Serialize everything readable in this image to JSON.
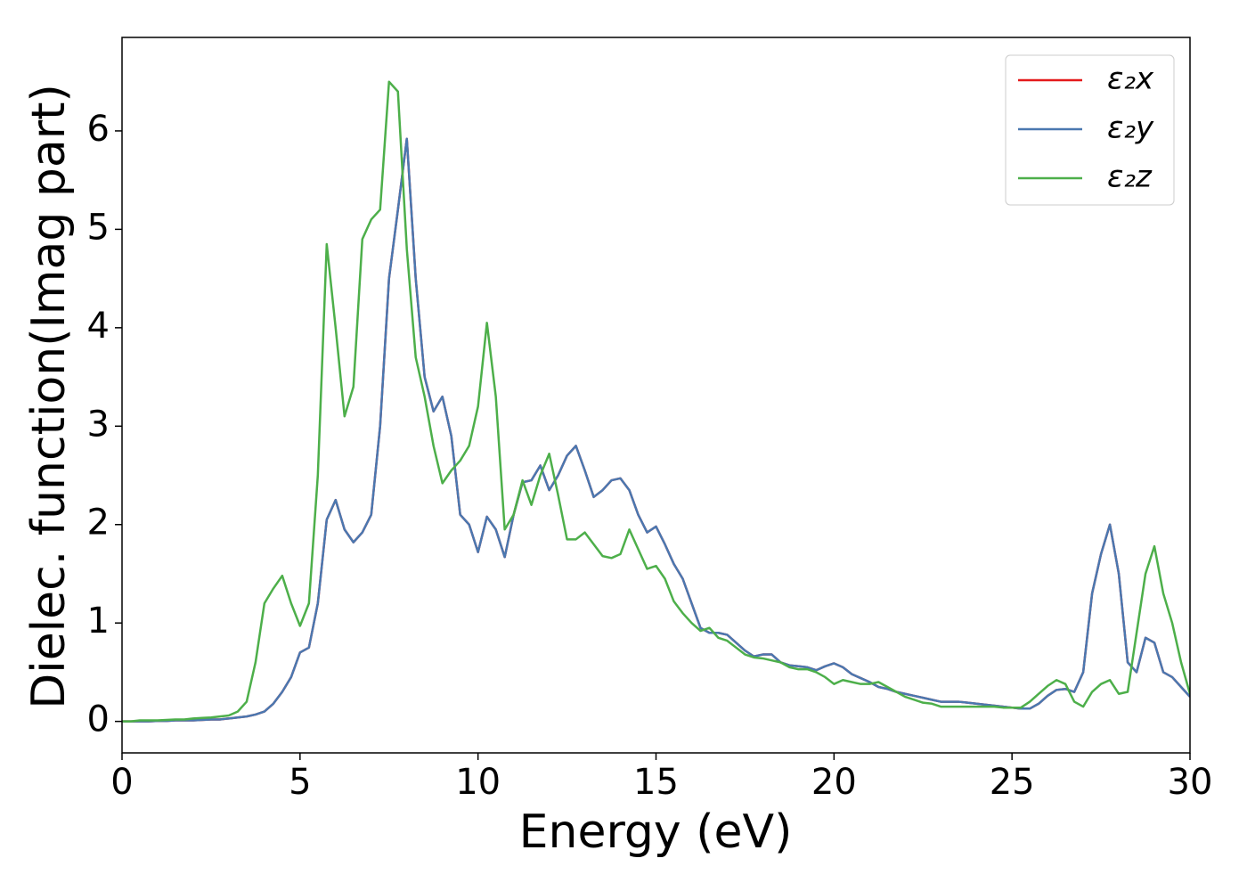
{
  "chart_data": {
    "type": "line",
    "xlabel": "Energy (eV)",
    "ylabel": "Dielec. function(Imag part)",
    "x": [
      0,
      0.25,
      0.5,
      0.75,
      1,
      1.25,
      1.5,
      1.75,
      2,
      2.25,
      2.5,
      2.75,
      3,
      3.25,
      3.5,
      3.75,
      4,
      4.25,
      4.5,
      4.75,
      5,
      5.25,
      5.5,
      5.75,
      6,
      6.25,
      6.5,
      6.75,
      7,
      7.25,
      7.5,
      7.75,
      8,
      8.25,
      8.5,
      8.75,
      9,
      9.25,
      9.5,
      9.75,
      10,
      10.25,
      10.5,
      10.75,
      11,
      11.25,
      11.5,
      11.75,
      12,
      12.25,
      12.5,
      12.75,
      13,
      13.25,
      13.5,
      13.75,
      14,
      14.25,
      14.5,
      14.75,
      15,
      15.25,
      15.5,
      15.75,
      16,
      16.25,
      16.5,
      16.75,
      17,
      17.25,
      17.5,
      17.75,
      18,
      18.25,
      18.5,
      18.75,
      19,
      19.25,
      19.5,
      19.75,
      20,
      20.25,
      20.5,
      20.75,
      21,
      21.25,
      21.5,
      21.75,
      22,
      22.25,
      22.5,
      22.75,
      23,
      23.25,
      23.5,
      23.75,
      24,
      24.25,
      24.5,
      24.75,
      25,
      25.25,
      25.5,
      25.75,
      26,
      26.25,
      26.5,
      26.75,
      27,
      27.25,
      27.5,
      27.75,
      28,
      28.25,
      28.5,
      28.75,
      29,
      29.25,
      29.5,
      29.75,
      30
    ],
    "series": [
      {
        "name": "ε₂x",
        "color": "#e41a1c",
        "values": [
          0,
          0,
          0,
          0,
          0.005,
          0.005,
          0.01,
          0.01,
          0.01,
          0.015,
          0.02,
          0.02,
          0.03,
          0.04,
          0.05,
          0.07,
          0.1,
          0.18,
          0.3,
          0.45,
          0.7,
          0.75,
          1.2,
          2.05,
          2.25,
          1.95,
          1.82,
          1.92,
          2.1,
          3.0,
          4.5,
          5.2,
          5.92,
          4.5,
          3.5,
          3.15,
          3.3,
          2.9,
          2.1,
          2.0,
          1.72,
          2.08,
          1.95,
          1.67,
          2.1,
          2.43,
          2.45,
          2.6,
          2.35,
          2.5,
          2.7,
          2.8,
          2.55,
          2.28,
          2.35,
          2.45,
          2.47,
          2.35,
          2.1,
          1.92,
          1.98,
          1.8,
          1.6,
          1.45,
          1.2,
          0.95,
          0.9,
          0.9,
          0.88,
          0.8,
          0.72,
          0.66,
          0.68,
          0.68,
          0.6,
          0.57,
          0.56,
          0.55,
          0.52,
          0.56,
          0.59,
          0.55,
          0.48,
          0.44,
          0.4,
          0.35,
          0.33,
          0.3,
          0.28,
          0.26,
          0.24,
          0.22,
          0.2,
          0.2,
          0.2,
          0.19,
          0.18,
          0.17,
          0.16,
          0.15,
          0.14,
          0.13,
          0.13,
          0.18,
          0.26,
          0.32,
          0.33,
          0.3,
          0.5,
          1.3,
          1.7,
          2.0,
          1.5,
          0.6,
          0.5,
          0.85,
          0.8,
          0.5,
          0.45,
          0.35,
          0.25
        ]
      },
      {
        "name": "ε₂y",
        "color": "#4a78b0",
        "values": [
          0,
          0,
          0,
          0,
          0.005,
          0.005,
          0.01,
          0.01,
          0.01,
          0.015,
          0.02,
          0.02,
          0.03,
          0.04,
          0.05,
          0.07,
          0.1,
          0.18,
          0.3,
          0.45,
          0.7,
          0.75,
          1.2,
          2.05,
          2.25,
          1.95,
          1.82,
          1.92,
          2.1,
          3.0,
          4.5,
          5.2,
          5.92,
          4.5,
          3.5,
          3.15,
          3.3,
          2.9,
          2.1,
          2.0,
          1.72,
          2.08,
          1.95,
          1.67,
          2.1,
          2.43,
          2.45,
          2.6,
          2.35,
          2.5,
          2.7,
          2.8,
          2.55,
          2.28,
          2.35,
          2.45,
          2.47,
          2.35,
          2.1,
          1.92,
          1.98,
          1.8,
          1.6,
          1.45,
          1.2,
          0.95,
          0.9,
          0.9,
          0.88,
          0.8,
          0.72,
          0.66,
          0.68,
          0.68,
          0.6,
          0.57,
          0.56,
          0.55,
          0.52,
          0.56,
          0.59,
          0.55,
          0.48,
          0.44,
          0.4,
          0.35,
          0.33,
          0.3,
          0.28,
          0.26,
          0.24,
          0.22,
          0.2,
          0.2,
          0.2,
          0.19,
          0.18,
          0.17,
          0.16,
          0.15,
          0.14,
          0.13,
          0.13,
          0.18,
          0.26,
          0.32,
          0.33,
          0.3,
          0.5,
          1.3,
          1.7,
          2.0,
          1.5,
          0.6,
          0.5,
          0.85,
          0.8,
          0.5,
          0.45,
          0.35,
          0.25
        ]
      },
      {
        "name": "ε₂z",
        "color": "#4daf4a",
        "values": [
          0,
          0,
          0.01,
          0.01,
          0.01,
          0.015,
          0.02,
          0.02,
          0.03,
          0.035,
          0.04,
          0.05,
          0.06,
          0.1,
          0.2,
          0.6,
          1.2,
          1.35,
          1.48,
          1.2,
          0.97,
          1.2,
          2.5,
          4.85,
          4.0,
          3.1,
          3.4,
          4.9,
          5.1,
          5.2,
          6.5,
          6.4,
          4.8,
          3.7,
          3.3,
          2.8,
          2.42,
          2.55,
          2.65,
          2.8,
          3.2,
          4.05,
          3.3,
          1.95,
          2.1,
          2.45,
          2.2,
          2.5,
          2.72,
          2.3,
          1.85,
          1.85,
          1.92,
          1.8,
          1.68,
          1.66,
          1.7,
          1.95,
          1.75,
          1.55,
          1.58,
          1.45,
          1.22,
          1.1,
          1.0,
          0.92,
          0.95,
          0.85,
          0.82,
          0.75,
          0.68,
          0.65,
          0.64,
          0.62,
          0.6,
          0.55,
          0.53,
          0.53,
          0.5,
          0.45,
          0.38,
          0.42,
          0.4,
          0.38,
          0.38,
          0.4,
          0.35,
          0.3,
          0.25,
          0.22,
          0.19,
          0.18,
          0.15,
          0.15,
          0.15,
          0.15,
          0.15,
          0.15,
          0.15,
          0.14,
          0.14,
          0.14,
          0.2,
          0.28,
          0.36,
          0.42,
          0.38,
          0.2,
          0.15,
          0.3,
          0.38,
          0.42,
          0.28,
          0.3,
          0.9,
          1.5,
          1.78,
          1.3,
          1.0,
          0.6,
          0.28
        ]
      }
    ],
    "xlim": [
      0,
      30
    ],
    "xticks": [
      0,
      5,
      10,
      15,
      20,
      25,
      30
    ],
    "ylim": [
      -0.32,
      6.95
    ],
    "yticks": [
      0,
      1,
      2,
      3,
      4,
      5,
      6
    ],
    "legend": "upper right"
  }
}
